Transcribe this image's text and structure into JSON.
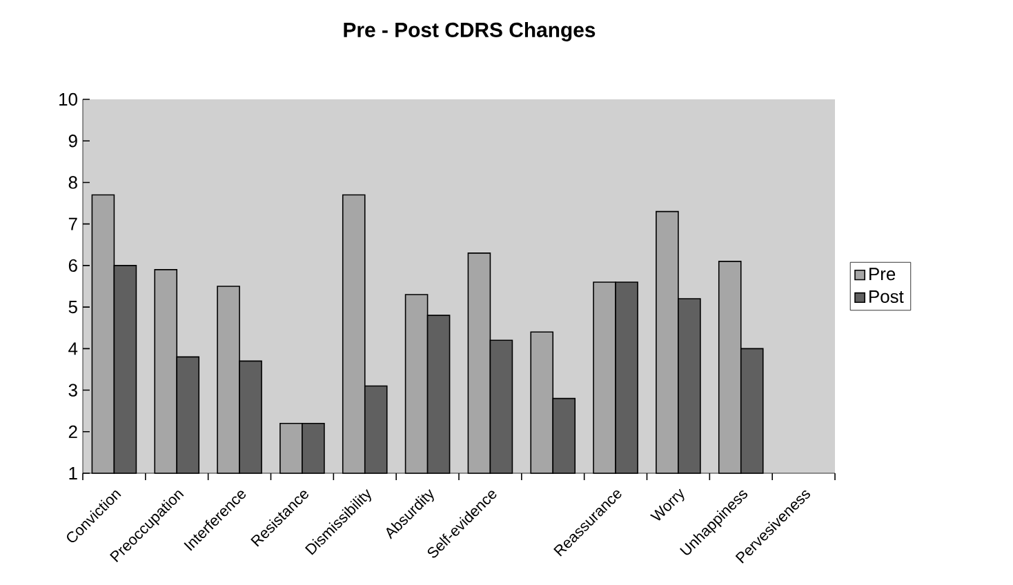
{
  "chart_data": {
    "type": "bar",
    "title": "Pre - Post CDRS Changes",
    "categories": [
      "Conviction",
      "Preoccupation",
      "Interference",
      "Resistance",
      "Dismissibility",
      "Absurdity",
      "Self-evidence",
      null,
      "Reassurance",
      "Worry",
      "Unhappiness",
      "Pervesiveness"
    ],
    "series": [
      {
        "name": "Pre",
        "color": "#a6a6a6",
        "values": [
          7.7,
          5.9,
          5.5,
          2.2,
          7.7,
          5.3,
          6.3,
          4.4,
          5.6,
          7.3,
          6.1,
          null
        ]
      },
      {
        "name": "Post",
        "color": "#606060",
        "values": [
          6.0,
          3.8,
          3.7,
          2.2,
          3.1,
          4.8,
          4.2,
          2.8,
          5.6,
          5.2,
          4.0,
          null
        ]
      }
    ],
    "ylim": [
      1,
      10
    ],
    "yticks": [
      1,
      2,
      3,
      4,
      5,
      6,
      7,
      8,
      9,
      10
    ],
    "grid": false,
    "legend": "right"
  }
}
